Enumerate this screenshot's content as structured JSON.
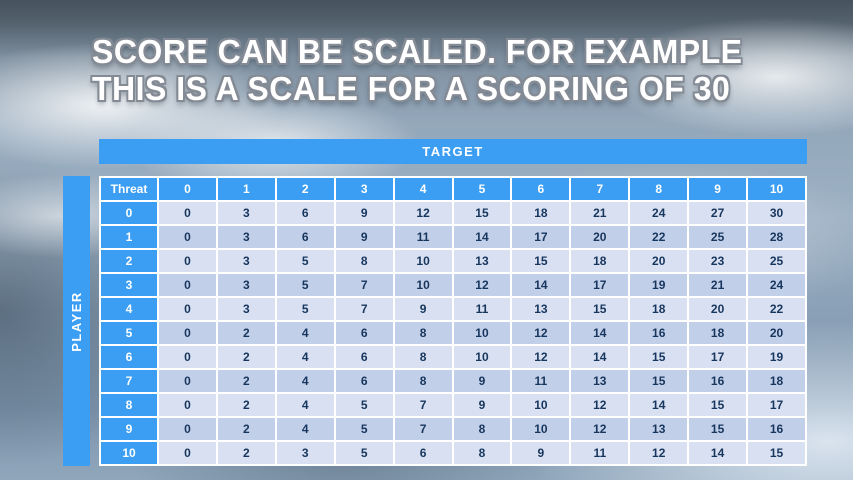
{
  "title": {
    "line1": "SCORE CAN BE SCALED. FOR EXAMPLE",
    "line2": "THIS IS A SCALE FOR A SCORING OF 30"
  },
  "table": {
    "target_label": "TARGET",
    "player_label": "PLAYER",
    "threat_label": "Threat",
    "col_headers": [
      "0",
      "1",
      "2",
      "3",
      "4",
      "5",
      "6",
      "7",
      "8",
      "9",
      "10"
    ],
    "rows": [
      {
        "label": "0",
        "values": [
          0,
          3,
          6,
          9,
          12,
          15,
          18,
          21,
          24,
          27,
          30
        ]
      },
      {
        "label": "1",
        "values": [
          0,
          3,
          6,
          9,
          11,
          14,
          17,
          20,
          22,
          25,
          28
        ]
      },
      {
        "label": "2",
        "values": [
          0,
          3,
          5,
          8,
          10,
          13,
          15,
          18,
          20,
          23,
          25
        ]
      },
      {
        "label": "3",
        "values": [
          0,
          3,
          5,
          7,
          10,
          12,
          14,
          17,
          19,
          21,
          24
        ]
      },
      {
        "label": "4",
        "values": [
          0,
          3,
          5,
          7,
          9,
          11,
          13,
          15,
          18,
          20,
          22
        ]
      },
      {
        "label": "5",
        "values": [
          0,
          2,
          4,
          6,
          8,
          10,
          12,
          14,
          16,
          18,
          20
        ]
      },
      {
        "label": "6",
        "values": [
          0,
          2,
          4,
          6,
          8,
          10,
          12,
          14,
          15,
          17,
          19
        ]
      },
      {
        "label": "7",
        "values": [
          0,
          2,
          4,
          6,
          8,
          9,
          11,
          13,
          15,
          16,
          18
        ]
      },
      {
        "label": "8",
        "values": [
          0,
          2,
          4,
          5,
          7,
          9,
          10,
          12,
          14,
          15,
          17
        ]
      },
      {
        "label": "9",
        "values": [
          0,
          2,
          4,
          5,
          7,
          8,
          10,
          12,
          13,
          15,
          16
        ]
      },
      {
        "label": "10",
        "values": [
          0,
          2,
          3,
          5,
          6,
          8,
          9,
          11,
          12,
          14,
          15
        ]
      }
    ]
  },
  "colors": {
    "accent_blue": "#3b9ef3",
    "row_light": "#d8e0f2",
    "row_dark": "#c2cfe9",
    "cell_text": "#17365d"
  }
}
